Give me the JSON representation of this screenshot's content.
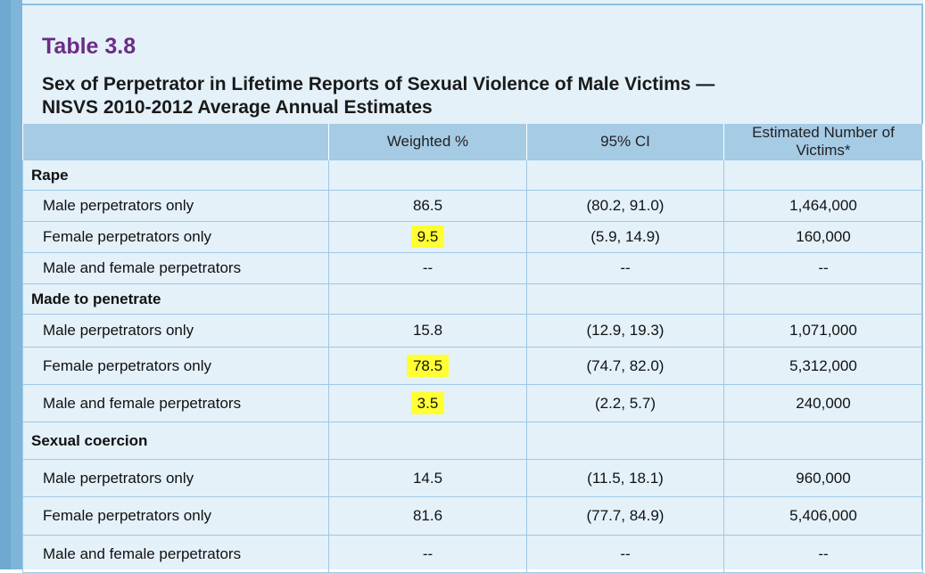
{
  "table_number": "Table 3.8",
  "title_line1": "Sex of Perpetrator in Lifetime Reports of Sexual Violence of Male Victims —",
  "title_line2": "NISVS 2010-2012 Average Annual Estimates",
  "headers": [
    "",
    "Weighted %",
    "95% CI",
    "Estimated Number of Victims*"
  ],
  "highlight_color": "#ffff33",
  "sections": [
    {
      "name": "Rape",
      "rows": [
        {
          "label": "Male perpetrators only",
          "pct": "86.5",
          "ci": "(80.2, 91.0)",
          "num": "1,464,000"
        },
        {
          "label": "Female perpetrators only",
          "pct": "9.5",
          "ci": "(5.9, 14.9)",
          "num": "160,000"
        },
        {
          "label": "Male and female perpetrators",
          "pct": "--",
          "ci": "--",
          "num": "--"
        }
      ]
    },
    {
      "name": "Made to penetrate",
      "rows": [
        {
          "label": "Male perpetrators only",
          "pct": "15.8",
          "ci": "(12.9, 19.3)",
          "num": "1,071,000"
        },
        {
          "label": "Female perpetrators only",
          "pct": "78.5",
          "ci": "(74.7, 82.0)",
          "num": "5,312,000"
        },
        {
          "label": "Male and female perpetrators",
          "pct": "3.5",
          "ci": "(2.2, 5.7)",
          "num": "240,000"
        }
      ]
    },
    {
      "name": "Sexual coercion",
      "rows": [
        {
          "label": "Male perpetrators only",
          "pct": "14.5",
          "ci": "(11.5, 18.1)",
          "num": "960,000"
        },
        {
          "label": "Female perpetrators only",
          "pct": "81.6",
          "ci": "(77.7, 84.9)",
          "num": "5,406,000"
        },
        {
          "label": "Male and female perpetrators",
          "pct": "--",
          "ci": "--",
          "num": "--"
        }
      ]
    }
  ]
}
